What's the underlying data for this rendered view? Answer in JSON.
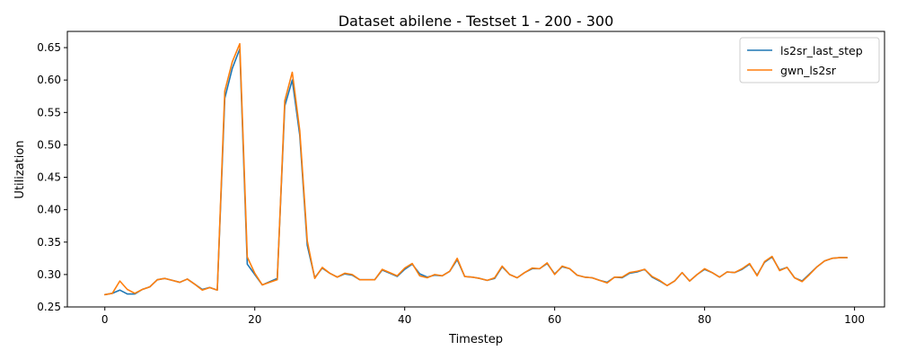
{
  "chart_data": {
    "type": "line",
    "title": "Dataset abilene - Testset 1 - 200 - 300",
    "xlabel": "Timestep",
    "ylabel": "Utilization",
    "xlim": [
      -5,
      104
    ],
    "ylim": [
      0.25,
      0.675
    ],
    "xticks": [
      0,
      20,
      40,
      60,
      80,
      100
    ],
    "yticks": [
      0.25,
      0.3,
      0.35,
      0.4,
      0.45,
      0.5,
      0.55,
      0.6,
      0.65
    ],
    "ytick_labels": [
      "0.25",
      "0.30",
      "0.35",
      "0.40",
      "0.45",
      "0.50",
      "0.55",
      "0.60",
      "0.65"
    ],
    "xtick_labels": [
      "0",
      "20",
      "40",
      "60",
      "80",
      "100"
    ],
    "grid": false,
    "legend_position": "top-right",
    "x": [
      0,
      1,
      2,
      3,
      4,
      5,
      6,
      7,
      8,
      9,
      10,
      11,
      12,
      13,
      14,
      15,
      16,
      17,
      18,
      19,
      20,
      21,
      22,
      23,
      24,
      25,
      26,
      27,
      28,
      29,
      30,
      31,
      32,
      33,
      34,
      35,
      36,
      37,
      38,
      39,
      40,
      41,
      42,
      43,
      44,
      45,
      46,
      47,
      48,
      49,
      50,
      51,
      52,
      53,
      54,
      55,
      56,
      57,
      58,
      59,
      60,
      61,
      62,
      63,
      64,
      65,
      66,
      67,
      68,
      69,
      70,
      71,
      72,
      73,
      74,
      75,
      76,
      77,
      78,
      79,
      80,
      81,
      82,
      83,
      84,
      85,
      86,
      87,
      88,
      89,
      90,
      91,
      92,
      93,
      94,
      95,
      96,
      97,
      98,
      99
    ],
    "series": [
      {
        "name": "ls2sr_last_step",
        "color": "#1f77b4",
        "values": [
          0.269,
          0.271,
          0.276,
          0.27,
          0.27,
          0.277,
          0.281,
          0.292,
          0.294,
          0.291,
          0.288,
          0.293,
          0.285,
          0.277,
          0.28,
          0.276,
          0.572,
          0.618,
          0.648,
          0.316,
          0.3,
          0.284,
          0.289,
          0.294,
          0.56,
          0.6,
          0.515,
          0.345,
          0.295,
          0.31,
          0.302,
          0.296,
          0.301,
          0.299,
          0.292,
          0.292,
          0.292,
          0.307,
          0.302,
          0.297,
          0.308,
          0.316,
          0.301,
          0.296,
          0.299,
          0.298,
          0.305,
          0.323,
          0.297,
          0.296,
          0.294,
          0.291,
          0.294,
          0.312,
          0.3,
          0.295,
          0.303,
          0.309,
          0.309,
          0.317,
          0.301,
          0.312,
          0.309,
          0.299,
          0.296,
          0.295,
          0.291,
          0.288,
          0.296,
          0.295,
          0.302,
          0.304,
          0.308,
          0.296,
          0.29,
          0.283,
          0.29,
          0.303,
          0.29,
          0.3,
          0.308,
          0.303,
          0.296,
          0.304,
          0.303,
          0.308,
          0.316,
          0.299,
          0.319,
          0.327,
          0.307,
          0.311,
          0.295,
          0.29,
          0.301,
          0.312,
          0.321,
          0.325,
          0.326,
          0.326
        ]
      },
      {
        "name": "gwn_ls2sr",
        "color": "#ff7f0e",
        "values": [
          0.269,
          0.271,
          0.29,
          0.277,
          0.271,
          0.277,
          0.281,
          0.292,
          0.294,
          0.291,
          0.288,
          0.293,
          0.285,
          0.276,
          0.28,
          0.276,
          0.583,
          0.628,
          0.656,
          0.327,
          0.302,
          0.284,
          0.288,
          0.292,
          0.568,
          0.612,
          0.522,
          0.352,
          0.294,
          0.311,
          0.302,
          0.296,
          0.302,
          0.3,
          0.292,
          0.292,
          0.292,
          0.308,
          0.303,
          0.298,
          0.31,
          0.317,
          0.298,
          0.295,
          0.3,
          0.298,
          0.305,
          0.325,
          0.297,
          0.296,
          0.294,
          0.291,
          0.295,
          0.313,
          0.3,
          0.295,
          0.303,
          0.31,
          0.309,
          0.318,
          0.3,
          0.313,
          0.309,
          0.299,
          0.296,
          0.295,
          0.291,
          0.287,
          0.296,
          0.296,
          0.303,
          0.305,
          0.308,
          0.297,
          0.291,
          0.283,
          0.29,
          0.303,
          0.29,
          0.3,
          0.309,
          0.303,
          0.296,
          0.304,
          0.303,
          0.309,
          0.317,
          0.298,
          0.32,
          0.328,
          0.306,
          0.311,
          0.295,
          0.289,
          0.3,
          0.312,
          0.321,
          0.325,
          0.326,
          0.326
        ]
      }
    ]
  }
}
